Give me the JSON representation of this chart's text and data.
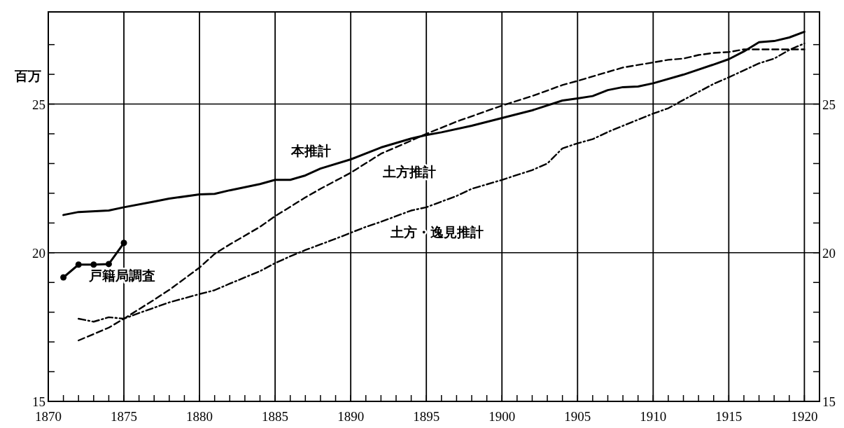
{
  "chart_data": {
    "type": "line",
    "ylabel": "百万",
    "xlim": [
      1870,
      1921
    ],
    "ylim": [
      15,
      28.1
    ],
    "y2lim": [
      15,
      28.1
    ],
    "xticks": [
      1870,
      {
        "value": 1871,
        "label": null
      },
      {
        "value": 1872,
        "label": null
      },
      {
        "value": 1873,
        "label": null
      },
      {
        "value": 1874,
        "label": null
      },
      1875,
      {
        "value": 1876,
        "label": null
      },
      {
        "value": 1877,
        "label": null
      },
      {
        "value": 1878,
        "label": null
      },
      {
        "value": 1879,
        "label": null
      },
      1880,
      {
        "value": 1881,
        "label": null
      },
      {
        "value": 1882,
        "label": null
      },
      {
        "value": 1883,
        "label": null
      },
      {
        "value": 1884,
        "label": null
      },
      1885,
      {
        "value": 1886,
        "label": null
      },
      {
        "value": 1887,
        "label": null
      },
      {
        "value": 1888,
        "label": null
      },
      {
        "value": 1889,
        "label": null
      },
      1890,
      {
        "value": 1891,
        "label": null
      },
      {
        "value": 1892,
        "label": null
      },
      {
        "value": 1893,
        "label": null
      },
      {
        "value": 1894,
        "label": null
      },
      1895,
      {
        "value": 1896,
        "label": null
      },
      {
        "value": 1897,
        "label": null
      },
      {
        "value": 1898,
        "label": null
      },
      {
        "value": 1899,
        "label": null
      },
      1900,
      {
        "value": 1901,
        "label": null
      },
      {
        "value": 1902,
        "label": null
      },
      {
        "value": 1903,
        "label": null
      },
      {
        "value": 1904,
        "label": null
      },
      1905,
      {
        "value": 1906,
        "label": null
      },
      {
        "value": 1907,
        "label": null
      },
      {
        "value": 1908,
        "label": null
      },
      {
        "value": 1909,
        "label": null
      },
      1910,
      {
        "value": 1911,
        "label": null
      },
      {
        "value": 1912,
        "label": null
      },
      {
        "value": 1913,
        "label": null
      },
      {
        "value": 1914,
        "label": null
      },
      1915,
      {
        "value": 1916,
        "label": null
      },
      {
        "value": 1917,
        "label": null
      },
      {
        "value": 1918,
        "label": null
      },
      {
        "value": 1919,
        "label": null
      },
      1920
    ],
    "yticks": [
      15,
      {
        "value": 16,
        "label": null
      },
      {
        "value": 17,
        "label": null
      },
      {
        "value": 18,
        "label": null
      },
      {
        "value": 19,
        "label": null
      },
      20,
      {
        "value": 21,
        "label": null
      },
      {
        "value": 22,
        "label": null
      },
      {
        "value": 23,
        "label": null
      },
      {
        "value": 24,
        "label": null
      },
      25,
      {
        "value": 26,
        "label": null
      },
      {
        "value": 27,
        "label": null
      }
    ],
    "y2ticks": [
      15,
      {
        "value": 16,
        "label": null
      },
      {
        "value": 17,
        "label": null
      },
      {
        "value": 18,
        "label": null
      },
      {
        "value": 19,
        "label": null
      },
      20,
      {
        "value": 21,
        "label": null
      },
      {
        "value": 22,
        "label": null
      },
      {
        "value": 23,
        "label": null
      },
      {
        "value": 24,
        "label": null
      },
      25,
      {
        "value": 26,
        "label": null
      },
      {
        "value": 27,
        "label": null
      }
    ],
    "grid": true,
    "series": [
      {
        "name": "本推計",
        "color": "#000000",
        "line_style": "solid",
        "marker": "none",
        "x": [
          1871,
          1872,
          1874,
          1875,
          1877,
          1878,
          1880,
          1881,
          1882,
          1884,
          1885,
          1886,
          1887,
          1888,
          1890,
          1892,
          1894,
          1895,
          1896,
          1898,
          1900,
          1902,
          1904,
          1905,
          1906,
          1907,
          1908,
          1909,
          1910,
          1912,
          1914,
          1915,
          1916,
          1917,
          1918,
          1919,
          1920
        ],
        "values": [
          21.27,
          21.37,
          21.42,
          21.53,
          21.72,
          21.82,
          21.96,
          21.98,
          22.1,
          22.31,
          22.45,
          22.45,
          22.6,
          22.83,
          23.14,
          23.54,
          23.84,
          23.96,
          24.05,
          24.27,
          24.53,
          24.79,
          25.12,
          25.19,
          25.27,
          25.47,
          25.57,
          25.59,
          25.7,
          25.99,
          26.33,
          26.51,
          26.77,
          27.08,
          27.12,
          27.24,
          27.43
        ]
      },
      {
        "name": "土方推計",
        "color": "#000000",
        "line_style": "dashed",
        "marker": "none",
        "x": [
          1872,
          1874,
          1875,
          1877,
          1878,
          1880,
          1881,
          1882,
          1884,
          1885,
          1887,
          1888,
          1890,
          1892,
          1894,
          1895,
          1897,
          1900,
          1902,
          1904,
          1905,
          1907,
          1908,
          1910,
          1911,
          1912,
          1913,
          1914,
          1915,
          1916,
          1920
        ],
        "values": [
          17.05,
          17.48,
          17.78,
          18.42,
          18.75,
          19.5,
          19.96,
          20.28,
          20.87,
          21.23,
          21.86,
          22.15,
          22.69,
          23.33,
          23.77,
          24.0,
          24.41,
          24.95,
          25.27,
          25.64,
          25.78,
          26.08,
          26.23,
          26.4,
          26.49,
          26.53,
          26.65,
          26.72,
          26.75,
          26.84,
          26.84
        ]
      },
      {
        "name": "土方・逸見推計",
        "color": "#000000",
        "line_style": "dashdot",
        "marker": "none",
        "x": [
          1872,
          1873,
          1874,
          1875,
          1876,
          1878,
          1879,
          1880,
          1881,
          1882,
          1884,
          1885,
          1886,
          1887,
          1889,
          1890,
          1891,
          1892,
          1894,
          1895,
          1897,
          1898,
          1900,
          1902,
          1903,
          1904,
          1905,
          1906,
          1907,
          1908,
          1910,
          1911,
          1912,
          1914,
          1915,
          1917,
          1918,
          1919,
          1920
        ],
        "values": [
          17.78,
          17.68,
          17.83,
          17.78,
          17.97,
          18.33,
          18.47,
          18.61,
          18.74,
          18.96,
          19.38,
          19.65,
          19.88,
          20.09,
          20.47,
          20.67,
          20.87,
          21.04,
          21.42,
          21.53,
          21.91,
          22.15,
          22.45,
          22.78,
          23.0,
          23.51,
          23.68,
          23.82,
          24.06,
          24.27,
          24.68,
          24.86,
          25.14,
          25.68,
          25.9,
          26.37,
          26.53,
          26.82,
          27.04
        ]
      },
      {
        "name": "戸籍局調査",
        "color": "#000000",
        "line_style": "solid",
        "marker": "circle",
        "x": [
          1871,
          1872,
          1873,
          1874,
          1875
        ],
        "values": [
          19.17,
          19.6,
          19.6,
          19.62,
          20.33
        ]
      }
    ]
  }
}
